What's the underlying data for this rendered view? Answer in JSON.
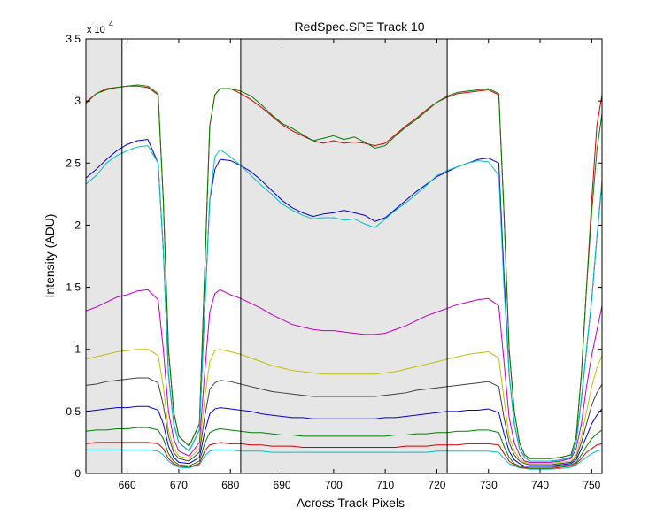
{
  "chart_data": {
    "type": "line",
    "title": "RedSpec.SPE   Track 10",
    "xlabel": "Across Track Pixels",
    "ylabel": "Intensity (ADU)",
    "y_scale_label": "x 10",
    "y_scale_exponent": "4",
    "xlim": [
      652,
      752
    ],
    "ylim": [
      0,
      3.5
    ],
    "x_ticks": [
      660,
      670,
      680,
      690,
      700,
      710,
      720,
      730,
      740,
      750
    ],
    "y_ticks": [
      0,
      0.5,
      1,
      1.5,
      2,
      2.5,
      3,
      3.5
    ],
    "y_tick_labels": [
      "0",
      "0.5",
      "1",
      "1.5",
      "2",
      "2.5",
      "3",
      "3.5"
    ],
    "shaded_regions": [
      [
        652,
        659
      ],
      [
        682,
        722
      ]
    ],
    "vertical_lines": [
      659,
      682,
      722
    ],
    "grid": false,
    "profile_x": [
      652,
      654,
      656,
      658,
      660,
      662,
      664,
      666,
      667,
      668,
      669,
      670,
      672,
      674,
      675,
      676,
      677,
      678,
      680,
      682,
      684,
      686,
      688,
      690,
      692,
      694,
      696,
      698,
      700,
      702,
      704,
      706,
      708,
      710,
      712,
      714,
      716,
      718,
      720,
      722,
      724,
      726,
      728,
      730,
      732,
      733,
      734,
      735,
      736,
      737,
      738,
      740,
      742,
      744,
      746,
      747,
      748,
      749,
      750,
      751,
      752
    ],
    "series": [
      {
        "color": "#d40000",
        "values": [
          2.99,
          3.06,
          3.1,
          3.11,
          3.12,
          3.12,
          3.11,
          3.05,
          2.2,
          1.0,
          0.5,
          0.3,
          0.22,
          0.4,
          1.6,
          2.8,
          3.05,
          3.1,
          3.1,
          3.06,
          3.01,
          2.95,
          2.88,
          2.81,
          2.76,
          2.72,
          2.68,
          2.66,
          2.68,
          2.66,
          2.67,
          2.66,
          2.64,
          2.66,
          2.73,
          2.8,
          2.86,
          2.93,
          2.99,
          3.03,
          3.06,
          3.07,
          3.08,
          3.09,
          3.05,
          2.1,
          1.0,
          0.5,
          0.25,
          0.15,
          0.12,
          0.12,
          0.12,
          0.13,
          0.15,
          0.3,
          0.8,
          1.5,
          2.2,
          2.8,
          3.05
        ]
      },
      {
        "color": "#008000",
        "values": [
          2.98,
          3.06,
          3.09,
          3.11,
          3.12,
          3.13,
          3.12,
          3.06,
          2.2,
          1.0,
          0.5,
          0.3,
          0.22,
          0.4,
          1.6,
          2.8,
          3.05,
          3.1,
          3.1,
          3.08,
          3.04,
          2.97,
          2.89,
          2.82,
          2.78,
          2.73,
          2.68,
          2.7,
          2.72,
          2.69,
          2.71,
          2.67,
          2.62,
          2.64,
          2.72,
          2.79,
          2.85,
          2.92,
          2.99,
          3.04,
          3.07,
          3.08,
          3.09,
          3.1,
          3.06,
          2.1,
          1.0,
          0.5,
          0.25,
          0.15,
          0.12,
          0.12,
          0.12,
          0.13,
          0.15,
          0.3,
          0.8,
          1.5,
          2.1,
          2.6,
          2.9
        ]
      },
      {
        "color": "#0000d0",
        "values": [
          2.38,
          2.45,
          2.53,
          2.6,
          2.65,
          2.68,
          2.69,
          2.5,
          1.8,
          0.8,
          0.4,
          0.25,
          0.18,
          0.35,
          1.3,
          2.2,
          2.45,
          2.53,
          2.52,
          2.48,
          2.43,
          2.36,
          2.28,
          2.2,
          2.14,
          2.1,
          2.07,
          2.09,
          2.1,
          2.12,
          2.1,
          2.08,
          2.03,
          2.06,
          2.13,
          2.2,
          2.27,
          2.33,
          2.39,
          2.43,
          2.47,
          2.5,
          2.53,
          2.54,
          2.5,
          1.6,
          0.8,
          0.4,
          0.2,
          0.13,
          0.1,
          0.1,
          0.1,
          0.11,
          0.13,
          0.25,
          0.6,
          1.0,
          1.4,
          1.9,
          2.35
        ]
      },
      {
        "color": "#00bfbf",
        "values": [
          2.33,
          2.4,
          2.5,
          2.56,
          2.6,
          2.63,
          2.64,
          2.5,
          1.8,
          0.8,
          0.4,
          0.25,
          0.18,
          0.35,
          1.3,
          2.2,
          2.55,
          2.61,
          2.55,
          2.48,
          2.4,
          2.32,
          2.25,
          2.17,
          2.12,
          2.08,
          2.05,
          2.06,
          2.06,
          2.04,
          2.05,
          2.01,
          1.98,
          2.05,
          2.12,
          2.18,
          2.25,
          2.32,
          2.4,
          2.44,
          2.47,
          2.5,
          2.52,
          2.51,
          2.4,
          1.5,
          0.8,
          0.4,
          0.2,
          0.13,
          0.1,
          0.1,
          0.1,
          0.11,
          0.13,
          0.25,
          0.6,
          1.0,
          1.4,
          1.9,
          2.35
        ]
      },
      {
        "color": "#bf00bf",
        "values": [
          1.31,
          1.34,
          1.38,
          1.42,
          1.44,
          1.47,
          1.48,
          1.4,
          1.0,
          0.5,
          0.28,
          0.18,
          0.14,
          0.25,
          0.8,
          1.3,
          1.45,
          1.48,
          1.44,
          1.41,
          1.37,
          1.33,
          1.28,
          1.24,
          1.2,
          1.18,
          1.16,
          1.15,
          1.15,
          1.14,
          1.13,
          1.12,
          1.12,
          1.13,
          1.16,
          1.19,
          1.23,
          1.27,
          1.3,
          1.33,
          1.36,
          1.38,
          1.4,
          1.41,
          1.35,
          0.9,
          0.45,
          0.25,
          0.15,
          0.1,
          0.09,
          0.09,
          0.09,
          0.1,
          0.12,
          0.2,
          0.4,
          0.7,
          0.95,
          1.15,
          1.35
        ]
      },
      {
        "color": "#bfbf00",
        "values": [
          0.92,
          0.94,
          0.96,
          0.98,
          0.99,
          1.0,
          1.0,
          0.95,
          0.7,
          0.35,
          0.2,
          0.14,
          0.12,
          0.2,
          0.6,
          0.9,
          0.99,
          1.0,
          0.98,
          0.96,
          0.93,
          0.9,
          0.87,
          0.85,
          0.83,
          0.82,
          0.81,
          0.8,
          0.8,
          0.8,
          0.8,
          0.8,
          0.8,
          0.81,
          0.82,
          0.84,
          0.86,
          0.88,
          0.9,
          0.92,
          0.94,
          0.96,
          0.97,
          0.98,
          0.93,
          0.6,
          0.3,
          0.18,
          0.12,
          0.09,
          0.08,
          0.08,
          0.08,
          0.09,
          0.1,
          0.15,
          0.3,
          0.5,
          0.7,
          0.85,
          0.95
        ]
      },
      {
        "color": "#404040",
        "values": [
          0.71,
          0.72,
          0.74,
          0.75,
          0.76,
          0.77,
          0.77,
          0.73,
          0.55,
          0.3,
          0.17,
          0.12,
          0.1,
          0.17,
          0.45,
          0.68,
          0.73,
          0.75,
          0.74,
          0.72,
          0.7,
          0.68,
          0.66,
          0.65,
          0.64,
          0.63,
          0.62,
          0.62,
          0.62,
          0.62,
          0.62,
          0.62,
          0.62,
          0.63,
          0.64,
          0.65,
          0.67,
          0.68,
          0.69,
          0.7,
          0.71,
          0.72,
          0.73,
          0.74,
          0.7,
          0.45,
          0.25,
          0.15,
          0.1,
          0.08,
          0.07,
          0.07,
          0.07,
          0.08,
          0.09,
          0.13,
          0.25,
          0.4,
          0.55,
          0.65,
          0.72
        ]
      },
      {
        "color": "#0000d0",
        "values": [
          0.5,
          0.51,
          0.52,
          0.53,
          0.53,
          0.54,
          0.54,
          0.51,
          0.4,
          0.22,
          0.13,
          0.09,
          0.08,
          0.13,
          0.33,
          0.48,
          0.52,
          0.53,
          0.52,
          0.51,
          0.5,
          0.48,
          0.47,
          0.46,
          0.45,
          0.45,
          0.44,
          0.44,
          0.44,
          0.44,
          0.44,
          0.44,
          0.44,
          0.45,
          0.45,
          0.46,
          0.47,
          0.48,
          0.49,
          0.5,
          0.5,
          0.51,
          0.51,
          0.52,
          0.49,
          0.32,
          0.18,
          0.11,
          0.08,
          0.06,
          0.06,
          0.06,
          0.06,
          0.07,
          0.08,
          0.11,
          0.2,
          0.3,
          0.4,
          0.47,
          0.52
        ]
      },
      {
        "color": "#008000",
        "values": [
          0.34,
          0.35,
          0.35,
          0.36,
          0.36,
          0.37,
          0.37,
          0.35,
          0.28,
          0.16,
          0.1,
          0.07,
          0.06,
          0.1,
          0.24,
          0.33,
          0.35,
          0.36,
          0.35,
          0.34,
          0.33,
          0.33,
          0.32,
          0.31,
          0.31,
          0.3,
          0.3,
          0.3,
          0.3,
          0.3,
          0.3,
          0.3,
          0.3,
          0.3,
          0.31,
          0.31,
          0.32,
          0.32,
          0.33,
          0.33,
          0.34,
          0.34,
          0.35,
          0.35,
          0.33,
          0.22,
          0.13,
          0.08,
          0.06,
          0.05,
          0.05,
          0.05,
          0.05,
          0.06,
          0.07,
          0.09,
          0.15,
          0.22,
          0.28,
          0.32,
          0.35
        ]
      },
      {
        "color": "#d40000",
        "values": [
          0.24,
          0.25,
          0.25,
          0.25,
          0.25,
          0.25,
          0.25,
          0.24,
          0.2,
          0.12,
          0.08,
          0.06,
          0.05,
          0.08,
          0.18,
          0.23,
          0.24,
          0.25,
          0.24,
          0.24,
          0.23,
          0.23,
          0.22,
          0.22,
          0.22,
          0.21,
          0.21,
          0.21,
          0.21,
          0.21,
          0.21,
          0.21,
          0.21,
          0.21,
          0.21,
          0.22,
          0.22,
          0.22,
          0.23,
          0.23,
          0.23,
          0.24,
          0.24,
          0.24,
          0.23,
          0.16,
          0.1,
          0.07,
          0.05,
          0.045,
          0.04,
          0.04,
          0.04,
          0.05,
          0.06,
          0.08,
          0.12,
          0.17,
          0.2,
          0.23,
          0.24
        ]
      },
      {
        "color": "#00bfbf",
        "values": [
          0.19,
          0.19,
          0.19,
          0.19,
          0.19,
          0.19,
          0.19,
          0.18,
          0.15,
          0.1,
          0.07,
          0.05,
          0.045,
          0.07,
          0.14,
          0.18,
          0.19,
          0.19,
          0.19,
          0.18,
          0.18,
          0.18,
          0.17,
          0.17,
          0.17,
          0.17,
          0.17,
          0.17,
          0.17,
          0.17,
          0.17,
          0.17,
          0.17,
          0.17,
          0.17,
          0.17,
          0.17,
          0.17,
          0.18,
          0.18,
          0.18,
          0.18,
          0.18,
          0.18,
          0.17,
          0.12,
          0.08,
          0.06,
          0.045,
          0.04,
          0.035,
          0.035,
          0.035,
          0.04,
          0.05,
          0.07,
          0.1,
          0.13,
          0.16,
          0.18,
          0.19
        ]
      }
    ]
  }
}
